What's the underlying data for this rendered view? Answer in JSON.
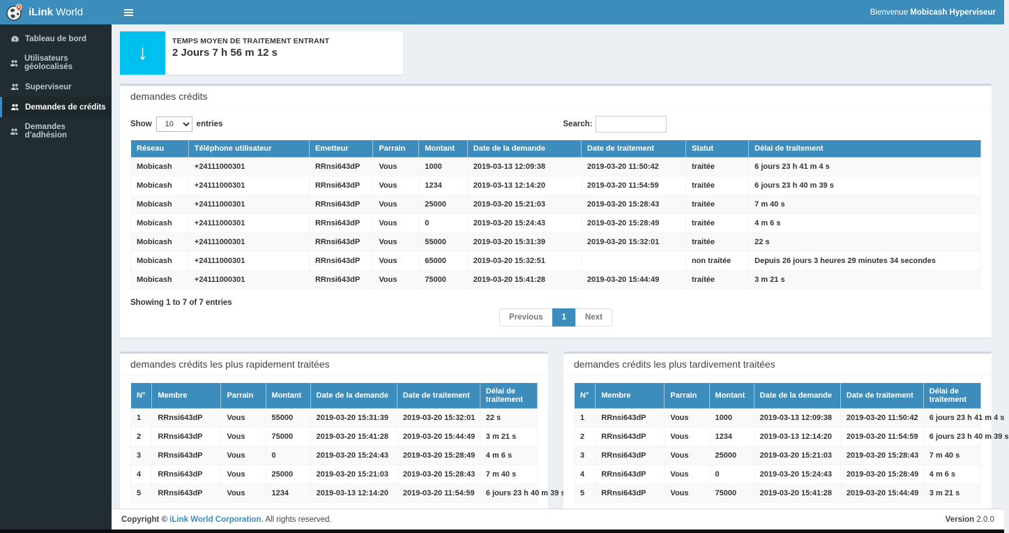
{
  "colors": {
    "accent_blue": "#3c8dbc",
    "sidebar_dark": "#222d32",
    "stat_aqua": "#00c0ef",
    "content_bg": "#ecf0f5"
  },
  "header": {
    "brand_bold": "iLink",
    "brand_regular": " World",
    "welcome_prefix": "Bienvenue ",
    "welcome_user": "Mobicash Hyperviseur"
  },
  "sidebar": {
    "items": [
      {
        "label": "Tableau de bord",
        "icon": "dashboard-icon",
        "active": false
      },
      {
        "label": "Utilisateurs géolocalisés",
        "icon": "users-icon",
        "active": false
      },
      {
        "label": "Superviseur",
        "icon": "users-icon",
        "active": false
      },
      {
        "label": "Demandes de crédits",
        "icon": "users-icon",
        "active": true
      },
      {
        "label": "Demandes d'adhésion",
        "icon": "users-icon",
        "active": false
      }
    ]
  },
  "stat_card": {
    "label": "TEMPS MOYEN DE TRAITEMENT ENTRANT",
    "value": "2 Jours 7 h 56 m 12 s",
    "icon": "arrow-down-icon",
    "icon_glyph": "↓",
    "icon_bg": "#00c0ef"
  },
  "credits_panel": {
    "title": "demandes crédits",
    "show_label": "Show",
    "show_value": "10",
    "entries_label": "entries",
    "search_label": "Search:",
    "search_value": "",
    "columns": [
      "Réseau",
      "Téléphone utilisateur",
      "Emetteur",
      "Parrain",
      "Montant",
      "Date de la demande",
      "Date de traitement",
      "Statut",
      "Délai de traitement"
    ],
    "rows": [
      [
        "Mobicash",
        "+24111000301",
        "RRnsi643dP",
        "Vous",
        "1000",
        "2019-03-13 12:09:38",
        "2019-03-20 11:50:42",
        "traitée",
        "6 jours 23 h 41 m 4 s"
      ],
      [
        "Mobicash",
        "+24111000301",
        "RRnsi643dP",
        "Vous",
        "1234",
        "2019-03-13 12:14:20",
        "2019-03-20 11:54:59",
        "traitée",
        "6 jours 23 h 40 m 39 s"
      ],
      [
        "Mobicash",
        "+24111000301",
        "RRnsi643dP",
        "Vous",
        "25000",
        "2019-03-20 15:21:03",
        "2019-03-20 15:28:43",
        "traitée",
        "7 m 40 s"
      ],
      [
        "Mobicash",
        "+24111000301",
        "RRnsi643dP",
        "Vous",
        "0",
        "2019-03-20 15:24:43",
        "2019-03-20 15:28:49",
        "traitée",
        "4 m 6 s"
      ],
      [
        "Mobicash",
        "+24111000301",
        "RRnsi643dP",
        "Vous",
        "55000",
        "2019-03-20 15:31:39",
        "2019-03-20 15:32:01",
        "traitée",
        "22 s"
      ],
      [
        "Mobicash",
        "+24111000301",
        "RRnsi643dP",
        "Vous",
        "65000",
        "2019-03-20 15:32:51",
        "",
        "non traitée",
        "Depuis 26 jours 3 heures 29 minutes 34 secondes"
      ],
      [
        "Mobicash",
        "+24111000301",
        "RRnsi643dP",
        "Vous",
        "75000",
        "2019-03-20 15:41:28",
        "2019-03-20 15:44:49",
        "traitée",
        "3 m 21 s"
      ]
    ],
    "info": "Showing 1 to 7 of 7 entries",
    "pagination": {
      "previous": "Previous",
      "current": "1",
      "next": "Next"
    }
  },
  "fastest_panel": {
    "title": "demandes crédits les plus rapidement traitées",
    "columns": [
      "N°",
      "Membre",
      "Parrain",
      "Montant",
      "Date de la demande",
      "Date de traitement",
      "Délai de traitement"
    ],
    "rows": [
      [
        "1",
        "RRnsi643dP",
        "Vous",
        "55000",
        "2019-03-20 15:31:39",
        "2019-03-20 15:32:01",
        "22 s"
      ],
      [
        "2",
        "RRnsi643dP",
        "Vous",
        "75000",
        "2019-03-20 15:41:28",
        "2019-03-20 15:44:49",
        "3 m 21 s"
      ],
      [
        "3",
        "RRnsi643dP",
        "Vous",
        "0",
        "2019-03-20 15:24:43",
        "2019-03-20 15:28:49",
        "4 m 6 s"
      ],
      [
        "4",
        "RRnsi643dP",
        "Vous",
        "25000",
        "2019-03-20 15:21:03",
        "2019-03-20 15:28:43",
        "7 m 40 s"
      ],
      [
        "5",
        "RRnsi643dP",
        "Vous",
        "1234",
        "2019-03-13 12:14:20",
        "2019-03-20 11:54:59",
        "6 jours 23 h 40 m 39 s"
      ]
    ]
  },
  "slowest_panel": {
    "title": "demandes crédits les plus tardivement traitées",
    "columns": [
      "N°",
      "Membre",
      "Parrain",
      "Montant",
      "Date de la demande",
      "Date de traitement",
      "Délai de traitement"
    ],
    "rows": [
      [
        "1",
        "RRnsi643dP",
        "Vous",
        "1000",
        "2019-03-13 12:09:38",
        "2019-03-20 11:50:42",
        "6 jours 23 h 41 m 4 s"
      ],
      [
        "2",
        "RRnsi643dP",
        "Vous",
        "1234",
        "2019-03-13 12:14:20",
        "2019-03-20 11:54:59",
        "6 jours 23 h 40 m 39 s"
      ],
      [
        "3",
        "RRnsi643dP",
        "Vous",
        "25000",
        "2019-03-20 15:21:03",
        "2019-03-20 15:28:43",
        "7 m 40 s"
      ],
      [
        "4",
        "RRnsi643dP",
        "Vous",
        "0",
        "2019-03-20 15:24:43",
        "2019-03-20 15:28:49",
        "4 m 6 s"
      ],
      [
        "5",
        "RRnsi643dP",
        "Vous",
        "75000",
        "2019-03-20 15:41:28",
        "2019-03-20 15:44:49",
        "3 m 21 s"
      ]
    ]
  },
  "footer": {
    "copyright_prefix": "Copyright © ",
    "company_link": "iLink World Corporation",
    "copyright_suffix": ". All rights reserved.",
    "version_label": "Version",
    "version_value": "2.0.0"
  }
}
